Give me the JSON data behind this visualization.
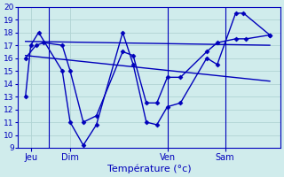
{
  "background_color": "#d0ecec",
  "grid_color": "#b0d4d4",
  "line_color": "#0000bb",
  "marker": "D",
  "markersize": 2.5,
  "linewidth": 1.0,
  "xlabel": "Température (°c)",
  "ylim": [
    9,
    20
  ],
  "yticks": [
    9,
    10,
    11,
    12,
    13,
    14,
    15,
    16,
    17,
    18,
    19,
    20
  ],
  "xlim": [
    0,
    100
  ],
  "day_ticks": [
    5,
    20,
    57,
    79
  ],
  "day_labels": [
    "Jeu",
    "Dim",
    "Ven",
    "Sam"
  ],
  "day_vlines": [
    12,
    57,
    79
  ],
  "s1_x": [
    3,
    5,
    8,
    17,
    20,
    25,
    30,
    40,
    44,
    49,
    53,
    57,
    62,
    72,
    76,
    83,
    86,
    96
  ],
  "s1_y": [
    13,
    17,
    18,
    15,
    11,
    9.2,
    10.8,
    18,
    15.5,
    11.0,
    10.8,
    12.2,
    12.5,
    16.0,
    15.5,
    19.5,
    19.5,
    17.8
  ],
  "s2_x": [
    3,
    7,
    10,
    17,
    20,
    25,
    30,
    40,
    44,
    49,
    53,
    57,
    62,
    72,
    76,
    83,
    87,
    96
  ],
  "s2_y": [
    16,
    17,
    17.2,
    17,
    15,
    11.0,
    11.5,
    16.5,
    16.2,
    12.5,
    12.5,
    14.5,
    14.5,
    16.5,
    17.2,
    17.5,
    17.5,
    17.8
  ],
  "trend1_x": [
    3,
    96
  ],
  "trend1_y": [
    17.3,
    17.0
  ],
  "trend2_x": [
    3,
    96
  ],
  "trend2_y": [
    16.2,
    14.2
  ]
}
